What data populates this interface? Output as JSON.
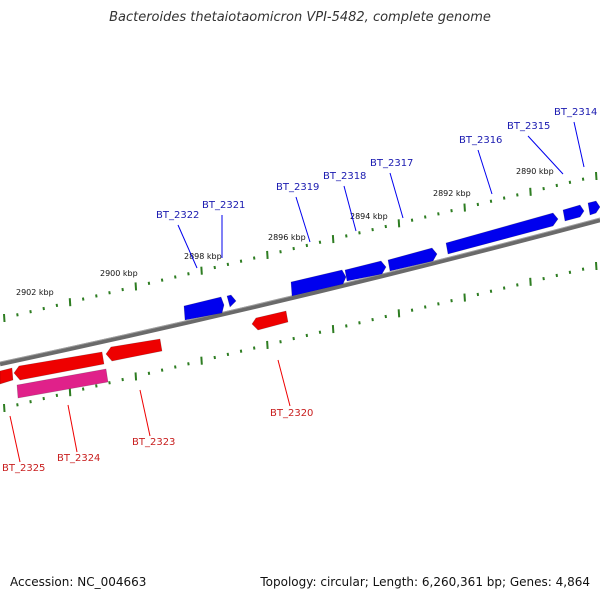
{
  "title": "Bacteroides thetaiotaomicron VPI-5482, complete genome",
  "footer": {
    "accession": "Accession: NC_004663",
    "topology": "Topology: circular; Length: 6,260,361 bp; Genes: 4,864"
  },
  "colors": {
    "backbone": "#808080",
    "tick": "#2e7d22",
    "forward_gene": "#0000ee",
    "forward_label": "#1a1ab0",
    "reverse_gene": "#ee0000",
    "reverse_label": "#c81e1e",
    "rna_gene": "#e0218a"
  },
  "scale_labels": [
    "2902 kbp",
    "2900 kbp",
    "2898 kbp",
    "2896 kbp",
    "2894 kbp",
    "2892 kbp",
    "2890 kbp"
  ],
  "forward_labels": [
    "BT_2322",
    "BT_2321",
    "BT_2319",
    "BT_2318",
    "BT_2317",
    "BT_2316",
    "BT_2315",
    "BT_2314"
  ],
  "reverse_labels": [
    "BT_2325",
    "BT_2324",
    "BT_2323",
    "BT_2320"
  ]
}
